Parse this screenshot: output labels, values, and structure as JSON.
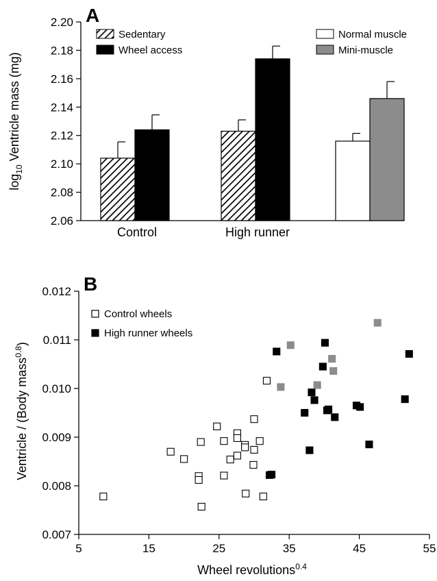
{
  "colors": {
    "sedentary": "hatch",
    "wheel_access": "#000000",
    "normal_muscle": "#ffffff",
    "mini_muscle": "#8c8c8c",
    "control_wheels": "#ffffff",
    "high_runner_wheels": "#000000",
    "mini_muscle_points": "#8c8c8c"
  },
  "chart_data": [
    {
      "panel": "A",
      "type": "bar",
      "ylabel_prefix": "log",
      "ylabel_sub": "10",
      "ylabel_rest": " Ventricle mass (mg)",
      "ylim": [
        2.06,
        2.2
      ],
      "yticks": [
        "2.06",
        "2.08",
        "2.10",
        "2.12",
        "2.14",
        "2.16",
        "2.18",
        "2.20"
      ],
      "ytick_values": [
        2.06,
        2.08,
        2.1,
        2.12,
        2.14,
        2.16,
        2.18,
        2.2
      ],
      "categories": [
        "Control",
        "High runner",
        ""
      ],
      "legend": {
        "left": [
          "Sedentary",
          "Wheel access"
        ],
        "right": [
          "Normal muscle",
          "Mini-muscle"
        ]
      },
      "groups": [
        {
          "label": "Control",
          "bars": [
            {
              "series": "Sedentary",
              "value": 2.104,
              "err": 0.0115
            },
            {
              "series": "Wheel access",
              "value": 2.124,
              "err": 0.0105
            }
          ]
        },
        {
          "label": "High runner",
          "bars": [
            {
              "series": "Sedentary",
              "value": 2.123,
              "err": 0.008
            },
            {
              "series": "Wheel access",
              "value": 2.174,
              "err": 0.009
            }
          ]
        },
        {
          "label": "",
          "bars": [
            {
              "series": "Normal muscle",
              "value": 2.116,
              "err": 0.0055
            },
            {
              "series": "Mini-muscle",
              "value": 2.146,
              "err": 0.012
            }
          ]
        }
      ]
    },
    {
      "panel": "B",
      "type": "scatter",
      "xlabel_main": "Wheel revolutions",
      "xlabel_sup": "0.4",
      "ylabel_main": "Ventricle / (Body mass",
      "ylabel_sup": "0.8",
      "ylabel_close": ")",
      "xlim": [
        5,
        55
      ],
      "ylim": [
        0.007,
        0.012
      ],
      "xticks": [
        "5",
        "15",
        "25",
        "35",
        "45",
        "55"
      ],
      "xtick_values": [
        5,
        15,
        25,
        35,
        45,
        55
      ],
      "yticks": [
        "0.007",
        "0.008",
        "0.009",
        "0.010",
        "0.011",
        "0.012"
      ],
      "ytick_values": [
        0.007,
        0.008,
        0.009,
        0.01,
        0.011,
        0.012
      ],
      "legend": [
        "Control wheels",
        "High runner wheels"
      ],
      "series": [
        {
          "name": "Control wheels",
          "style": "open",
          "points": [
            [
              8.5,
              0.00778
            ],
            [
              18.1,
              0.0087
            ],
            [
              20.0,
              0.00855
            ],
            [
              22.1,
              0.0082
            ],
            [
              22.1,
              0.00812
            ],
            [
              22.4,
              0.0089
            ],
            [
              22.5,
              0.00757
            ],
            [
              24.7,
              0.00922
            ],
            [
              25.7,
              0.00892
            ],
            [
              25.7,
              0.00821
            ],
            [
              26.6,
              0.00854
            ],
            [
              27.6,
              0.00908
            ],
            [
              27.6,
              0.00898
            ],
            [
              27.6,
              0.00862
            ],
            [
              28.7,
              0.00884
            ],
            [
              28.7,
              0.00879
            ],
            [
              28.8,
              0.00784
            ],
            [
              30.0,
              0.00937
            ],
            [
              30.0,
              0.00874
            ],
            [
              29.9,
              0.00843
            ],
            [
              30.8,
              0.00892
            ],
            [
              31.3,
              0.00778
            ],
            [
              31.8,
              0.01016
            ]
          ]
        },
        {
          "name": "High runner wheels",
          "style": "filled",
          "points": [
            [
              32.2,
              0.00822
            ],
            [
              32.5,
              0.00823
            ],
            [
              33.2,
              0.01076
            ],
            [
              37.2,
              0.0095
            ],
            [
              37.9,
              0.00873
            ],
            [
              38.2,
              0.00992
            ],
            [
              38.6,
              0.00976
            ],
            [
              39.8,
              0.01045
            ],
            [
              40.1,
              0.01094
            ],
            [
              40.4,
              0.00955
            ],
            [
              40.6,
              0.00957
            ],
            [
              41.5,
              0.00941
            ],
            [
              44.6,
              0.00965
            ],
            [
              45.1,
              0.00962
            ],
            [
              46.4,
              0.00885
            ],
            [
              51.5,
              0.00978
            ],
            [
              52.1,
              0.01071
            ]
          ]
        },
        {
          "style": "gray",
          "points": [
            [
              33.8,
              0.01003
            ],
            [
              35.2,
              0.01089
            ],
            [
              39.0,
              0.01007
            ],
            [
              41.1,
              0.01061
            ],
            [
              41.3,
              0.01036
            ],
            [
              47.6,
              0.01135
            ]
          ]
        }
      ]
    }
  ]
}
